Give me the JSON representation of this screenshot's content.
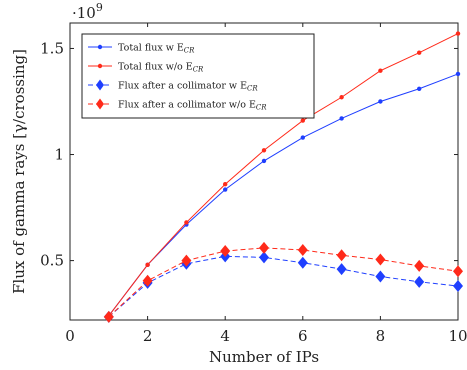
{
  "chart_data": {
    "type": "line",
    "xlabel": "Number of IPs",
    "ylabel": "Flux of gamma rays [γ/crossing]",
    "y_scale_text": "·10",
    "y_scale_exponent": "9",
    "xlim": [
      0,
      10
    ],
    "ylim": [
      0.22,
      1.62
    ],
    "x_ticks": [
      0,
      2,
      4,
      6,
      8,
      10
    ],
    "x_tick_labels": [
      "0",
      "2",
      "4",
      "6",
      "8",
      "10"
    ],
    "y_ticks": [
      0.5,
      1,
      1.5
    ],
    "y_tick_labels": [
      "0.5",
      "1",
      "1.5"
    ],
    "legend_position": "top-left",
    "x": [
      1,
      2,
      3,
      4,
      5,
      6,
      7,
      8,
      9,
      10
    ],
    "series": [
      {
        "name": "Total flux w E",
        "name_sub": "CR",
        "values": [
          0.24,
          0.48,
          0.67,
          0.835,
          0.97,
          1.08,
          1.17,
          1.25,
          1.31,
          1.38
        ],
        "color": "#1f3fff",
        "marker": "dot",
        "dash": "solid"
      },
      {
        "name": "Total flux w/o E",
        "name_sub": "CR",
        "values": [
          0.24,
          0.48,
          0.68,
          0.86,
          1.02,
          1.16,
          1.27,
          1.395,
          1.48,
          1.57
        ],
        "color": "#ff2a1a",
        "marker": "dot",
        "dash": "solid"
      },
      {
        "name": "Flux after a collimator w E",
        "name_sub": "CR",
        "values": [
          0.235,
          0.395,
          0.485,
          0.52,
          0.515,
          0.49,
          0.46,
          0.425,
          0.4,
          0.38
        ],
        "color": "#1f3fff",
        "marker": "diamond",
        "dash": "dashed"
      },
      {
        "name": "Flux after a collimator w/o E",
        "name_sub": "CR",
        "values": [
          0.235,
          0.405,
          0.5,
          0.545,
          0.56,
          0.55,
          0.525,
          0.505,
          0.475,
          0.45
        ],
        "color": "#ff2a1a",
        "marker": "diamond",
        "dash": "dashed"
      }
    ]
  }
}
